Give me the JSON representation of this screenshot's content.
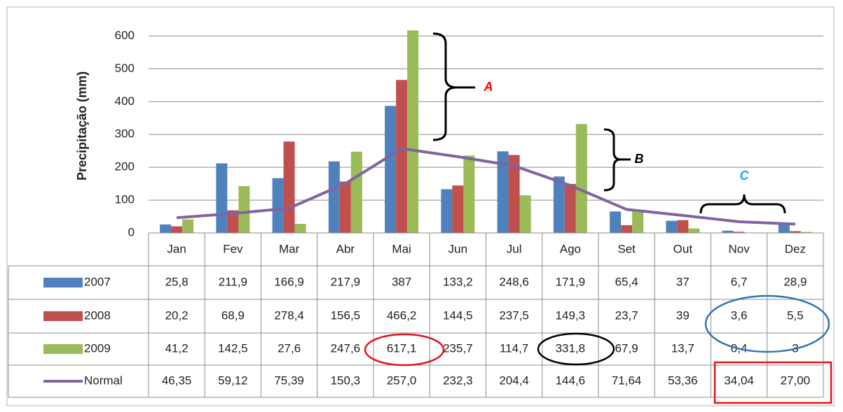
{
  "chart_data": {
    "type": "bar",
    "y_label": "Precipitação (mm)",
    "categories": [
      "Jan",
      "Fev",
      "Mar",
      "Abr",
      "Mai",
      "Jun",
      "Jul",
      "Ago",
      "Set",
      "Out",
      "Nov",
      "Dez"
    ],
    "series": [
      {
        "name": "2007",
        "color": "#4f81bd",
        "type": "bar",
        "values": [
          25.8,
          211.9,
          166.9,
          217.9,
          387,
          133.2,
          248.6,
          171.9,
          65.4,
          37,
          6.7,
          28.9
        ],
        "value_labels": [
          "25,8",
          "211,9",
          "166,9",
          "217,9",
          "387",
          "133,2",
          "248,6",
          "171,9",
          "65,4",
          "37",
          "6,7",
          "28,9"
        ]
      },
      {
        "name": "2008",
        "color": "#c0504d",
        "type": "bar",
        "values": [
          20.2,
          68.9,
          278.4,
          156.5,
          466.2,
          144.5,
          237.5,
          149.3,
          23.7,
          39,
          3.6,
          5.5
        ],
        "value_labels": [
          "20,2",
          "68,9",
          "278,4",
          "156,5",
          "466,2",
          "144,5",
          "237,5",
          "149,3",
          "23,7",
          "39",
          "3,6",
          "5,5"
        ]
      },
      {
        "name": "2009",
        "color": "#9bbb59",
        "type": "bar",
        "values": [
          41.2,
          142.5,
          27.6,
          247.6,
          617.1,
          235.7,
          114.7,
          331.8,
          67.9,
          13.7,
          0.4,
          3
        ],
        "value_labels": [
          "41,2",
          "142,5",
          "27,6",
          "247,6",
          "617,1",
          "235,7",
          "114,7",
          "331,8",
          "67,9",
          "13,7",
          "0,4",
          "3"
        ]
      },
      {
        "name": "Normal",
        "color": "#8064a2",
        "type": "line",
        "values": [
          46.35,
          59.12,
          75.39,
          150.3,
          257.0,
          232.3,
          204.4,
          144.6,
          71.64,
          53.36,
          34.04,
          27.0
        ],
        "value_labels": [
          "46,35",
          "59,12",
          "75,39",
          "150,3",
          "257,0",
          "232,3",
          "204,4",
          "144,6",
          "71,64",
          "53,36",
          "34,04",
          "27,00"
        ]
      }
    ],
    "ylim": [
      0,
      650
    ],
    "yticks": [
      0,
      100,
      200,
      300,
      400,
      500,
      600
    ],
    "grid": true,
    "annotations": [
      {
        "text": "A",
        "color": "#ff0000"
      },
      {
        "text": "B",
        "color": "#000000"
      },
      {
        "text": "C",
        "color": "#00b0f0"
      }
    ]
  }
}
